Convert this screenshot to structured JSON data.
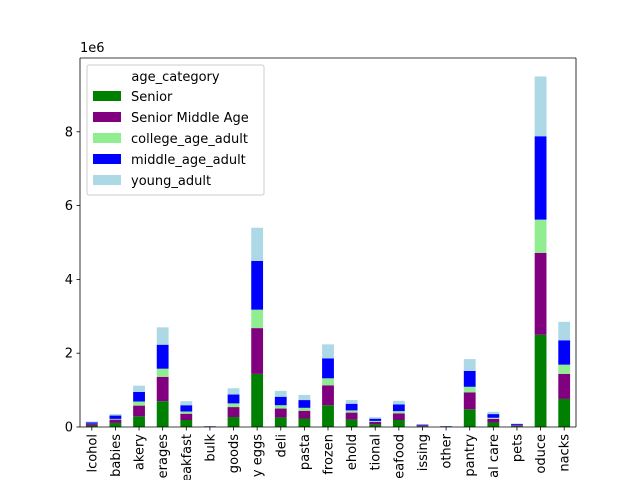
{
  "chart_data": {
    "type": "bar",
    "stacked": true,
    "categories": [
      "alcohol",
      "babies",
      "bakery",
      "beverages",
      "breakfast",
      "bulk",
      "canned goods",
      "dairy eggs",
      "deli",
      "dry goods pasta",
      "frozen",
      "household",
      "international",
      "meat seafood",
      "missing",
      "other",
      "pantry",
      "personal care",
      "pets",
      "produce",
      "snacks"
    ],
    "visible_tick_labels": [
      "lcohol",
      "babies",
      "akery",
      "erages",
      "eakfast",
      "bulk",
      "goods",
      "y eggs",
      "deli",
      "pasta",
      "frozen",
      "ehold",
      "tional",
      "eafood",
      "issing",
      "other",
      "pantry",
      "al care",
      "pets",
      "oduce",
      "nacks"
    ],
    "scale_label": "1e6",
    "ylim": [
      0,
      10000000
    ],
    "yticks": [
      0,
      2000000,
      4000000,
      6000000,
      8000000
    ],
    "ytick_labels": [
      "0",
      "2",
      "4",
      "6",
      "8"
    ],
    "legend": {
      "title": "age_category",
      "position": "upper left"
    },
    "series": [
      {
        "name": "Senior",
        "color": "#008000",
        "values": [
          40000,
          110000,
          290000,
          700000,
          190000,
          8000,
          270000,
          1440000,
          260000,
          230000,
          590000,
          200000,
          70000,
          190000,
          20000,
          8000,
          480000,
          120000,
          25000,
          2500000,
          760000
        ]
      },
      {
        "name": "Senior Middle Age",
        "color": "#800080",
        "values": [
          40000,
          90000,
          290000,
          660000,
          170000,
          7000,
          270000,
          1240000,
          240000,
          210000,
          540000,
          190000,
          70000,
          180000,
          20000,
          7000,
          460000,
          100000,
          25000,
          2220000,
          680000
        ]
      },
      {
        "name": "college_age_adult",
        "color": "#90EE90",
        "values": [
          8000,
          20000,
          110000,
          220000,
          60000,
          2000,
          100000,
          500000,
          90000,
          80000,
          190000,
          60000,
          25000,
          60000,
          5000,
          2000,
          150000,
          30000,
          8000,
          900000,
          250000
        ]
      },
      {
        "name": "middle_age_adult",
        "color": "#0000FF",
        "values": [
          40000,
          90000,
          260000,
          650000,
          170000,
          6000,
          240000,
          1320000,
          230000,
          210000,
          540000,
          180000,
          60000,
          180000,
          20000,
          7000,
          430000,
          100000,
          25000,
          2260000,
          660000
        ]
      },
      {
        "name": "young_adult",
        "color": "#ADD8E6",
        "values": [
          20000,
          40000,
          170000,
          470000,
          110000,
          4000,
          170000,
          900000,
          160000,
          140000,
          380000,
          100000,
          40000,
          100000,
          10000,
          4000,
          320000,
          60000,
          15000,
          1620000,
          500000
        ]
      }
    ]
  }
}
